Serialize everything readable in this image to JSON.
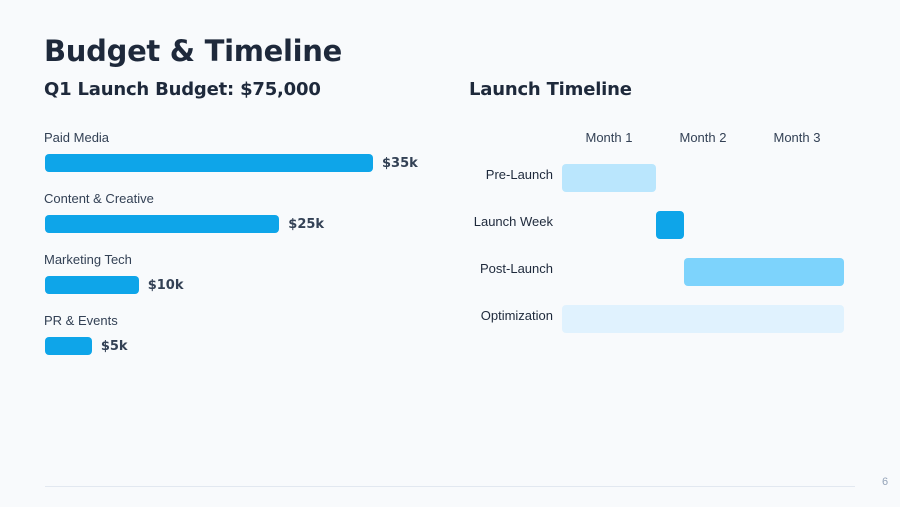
{
  "slide": {
    "title": "Budget & Timeline",
    "page_number": "6"
  },
  "budget": {
    "heading": "Q1 Launch Budget: $75,000",
    "items": [
      {
        "label": "Paid Media",
        "value_label": "$35k",
        "value": 35
      },
      {
        "label": "Content & Creative",
        "value_label": "$25k",
        "value": 25
      },
      {
        "label": "Marketing Tech",
        "value_label": "$10k",
        "value": 10
      },
      {
        "label": "PR & Events",
        "value_label": "$5k",
        "value": 5
      }
    ],
    "bar_color": "#0ea5e9"
  },
  "timeline": {
    "heading": "Launch Timeline",
    "months": [
      "Month 1",
      "Month 2",
      "Month 3"
    ],
    "phases": [
      {
        "label": "Pre-Launch",
        "start": 0,
        "end": 1,
        "color": "#bae6fd"
      },
      {
        "label": "Launch Week",
        "start": 1,
        "end": 1.3,
        "color": "#0ea5e9"
      },
      {
        "label": "Post-Launch",
        "start": 1.3,
        "end": 3,
        "color": "#7dd3fc"
      },
      {
        "label": "Optimization",
        "start": 0,
        "end": 3,
        "color": "#e0f2fe"
      }
    ]
  },
  "chart_data": [
    {
      "type": "bar",
      "orientation": "horizontal",
      "title": "Q1 Launch Budget: $75,000",
      "categories": [
        "Paid Media",
        "Content & Creative",
        "Marketing Tech",
        "PR & Events"
      ],
      "values": [
        35000,
        25000,
        10000,
        5000
      ],
      "data_labels": [
        "$35k",
        "$25k",
        "$10k",
        "$5k"
      ],
      "xlabel": "",
      "ylabel": "",
      "grid": false,
      "legend": null
    },
    {
      "type": "gantt",
      "title": "Launch Timeline",
      "x_ticks": [
        "Month 1",
        "Month 2",
        "Month 3"
      ],
      "x_range": [
        0,
        3
      ],
      "tasks": [
        {
          "name": "Pre-Launch",
          "start": 0,
          "end": 1
        },
        {
          "name": "Launch Week",
          "start": 1,
          "end": 1.3
        },
        {
          "name": "Post-Launch",
          "start": 1.3,
          "end": 3
        },
        {
          "name": "Optimization",
          "start": 0,
          "end": 3
        }
      ],
      "grid": false,
      "legend": null
    }
  ]
}
